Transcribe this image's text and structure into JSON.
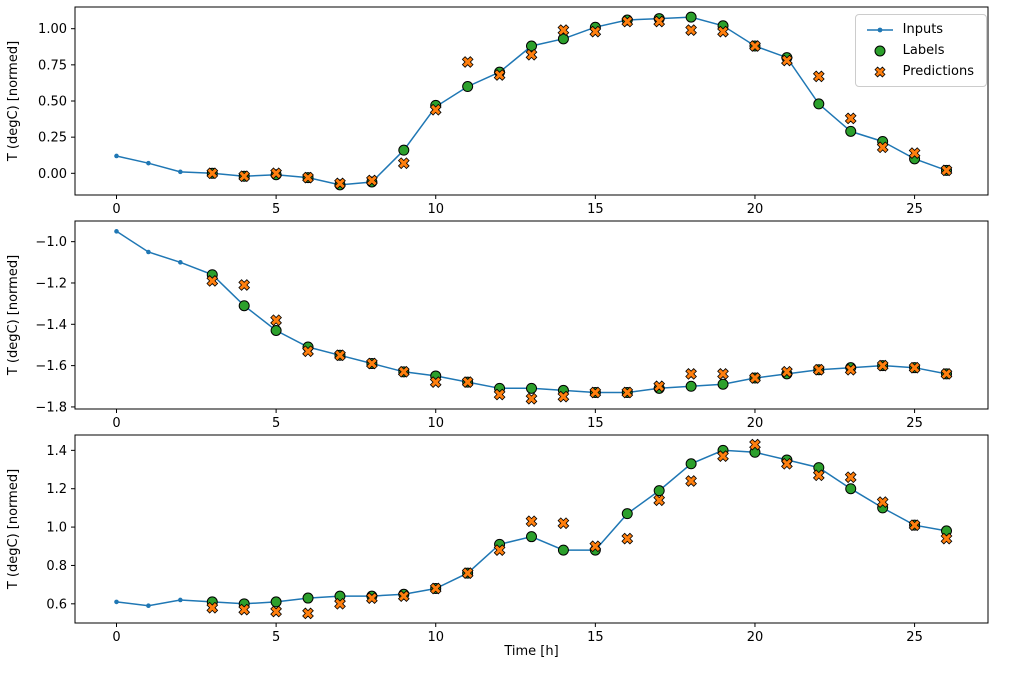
{
  "figure": {
    "xlabel": "Time [h]",
    "ylabel": "T (degC) [normed]",
    "legend": [
      {
        "label": "Inputs",
        "marker": "dot-line",
        "color": "#1f77b4"
      },
      {
        "label": "Labels",
        "marker": "circle",
        "color": "#2ca02c"
      },
      {
        "label": "Predictions",
        "marker": "x",
        "color": "#ff7f0e"
      }
    ]
  },
  "chart_data": [
    {
      "type": "line",
      "ylabel": "T (degC) [normed]",
      "xlim": [
        -1.3,
        27.3
      ],
      "ylim": [
        -0.15,
        1.15
      ],
      "xticks": [
        0,
        5,
        10,
        15,
        20,
        25
      ],
      "xticklabels": [
        "0",
        "5",
        "10",
        "15",
        "20",
        "25"
      ],
      "yticks": [
        0.0,
        0.25,
        0.5,
        0.75,
        1.0
      ],
      "yticklabels": [
        "0.00",
        "0.25",
        "0.50",
        "0.75",
        "1.00"
      ],
      "series": [
        {
          "name": "Inputs",
          "marker": "dot-line",
          "color": "#1f77b4",
          "x": [
            0,
            1,
            2,
            3,
            4,
            5,
            6,
            7,
            8,
            9,
            10,
            11,
            12,
            13,
            14,
            15,
            16,
            17,
            18,
            19,
            20,
            21,
            22,
            23,
            24,
            25,
            26
          ],
          "y": [
            0.12,
            0.07,
            0.01,
            0.0,
            -0.02,
            -0.01,
            -0.03,
            -0.08,
            -0.06,
            0.16,
            0.46,
            0.6,
            0.7,
            0.88,
            0.93,
            1.01,
            1.06,
            1.07,
            1.08,
            1.02,
            0.88,
            0.8,
            0.48,
            0.29,
            0.22,
            0.1,
            0.02
          ]
        },
        {
          "name": "Labels",
          "marker": "circle",
          "color": "#2ca02c",
          "x": [
            3,
            4,
            5,
            6,
            7,
            8,
            9,
            10,
            11,
            12,
            13,
            14,
            15,
            16,
            17,
            18,
            19,
            20,
            21,
            22,
            23,
            24,
            25,
            26
          ],
          "y": [
            0.0,
            -0.02,
            -0.01,
            -0.03,
            -0.08,
            -0.06,
            0.16,
            0.47,
            0.6,
            0.7,
            0.88,
            0.93,
            1.01,
            1.06,
            1.07,
            1.08,
            1.02,
            0.88,
            0.8,
            0.48,
            0.29,
            0.22,
            0.1,
            0.02
          ]
        },
        {
          "name": "Predictions",
          "marker": "x",
          "color": "#ff7f0e",
          "x": [
            3,
            4,
            5,
            6,
            7,
            8,
            9,
            10,
            11,
            12,
            13,
            14,
            15,
            16,
            17,
            18,
            19,
            20,
            21,
            22,
            23,
            24,
            25,
            26
          ],
          "y": [
            0.0,
            -0.02,
            0.0,
            -0.03,
            -0.07,
            -0.05,
            0.07,
            0.44,
            0.77,
            0.68,
            0.82,
            0.99,
            0.98,
            1.05,
            1.05,
            0.99,
            0.98,
            0.88,
            0.78,
            0.67,
            0.38,
            0.18,
            0.14,
            0.02
          ]
        }
      ]
    },
    {
      "type": "line",
      "ylabel": "T (degC) [normed]",
      "xlim": [
        -1.3,
        27.3
      ],
      "ylim": [
        -1.81,
        -0.9
      ],
      "xticks": [
        0,
        5,
        10,
        15,
        20,
        25
      ],
      "xticklabels": [
        "0",
        "5",
        "10",
        "15",
        "20",
        "25"
      ],
      "yticks": [
        -1.8,
        -1.6,
        -1.4,
        -1.2,
        -1.0
      ],
      "yticklabels": [
        "−1.8",
        "−1.6",
        "−1.4",
        "−1.2",
        "−1.0"
      ],
      "series": [
        {
          "name": "Inputs",
          "marker": "dot-line",
          "color": "#1f77b4",
          "x": [
            0,
            1,
            2,
            3,
            4,
            5,
            6,
            7,
            8,
            9,
            10,
            11,
            12,
            13,
            14,
            15,
            16,
            17,
            18,
            19,
            20,
            21,
            22,
            23,
            24,
            25,
            26
          ],
          "y": [
            -0.95,
            -1.05,
            -1.1,
            -1.16,
            -1.31,
            -1.43,
            -1.51,
            -1.55,
            -1.59,
            -1.63,
            -1.65,
            -1.68,
            -1.71,
            -1.71,
            -1.72,
            -1.73,
            -1.73,
            -1.71,
            -1.7,
            -1.69,
            -1.66,
            -1.64,
            -1.62,
            -1.61,
            -1.6,
            -1.61,
            -1.64
          ]
        },
        {
          "name": "Labels",
          "marker": "circle",
          "color": "#2ca02c",
          "x": [
            3,
            4,
            5,
            6,
            7,
            8,
            9,
            10,
            11,
            12,
            13,
            14,
            15,
            16,
            17,
            18,
            19,
            20,
            21,
            22,
            23,
            24,
            25,
            26
          ],
          "y": [
            -1.16,
            -1.31,
            -1.43,
            -1.51,
            -1.55,
            -1.59,
            -1.63,
            -1.65,
            -1.68,
            -1.71,
            -1.71,
            -1.72,
            -1.73,
            -1.73,
            -1.71,
            -1.7,
            -1.69,
            -1.66,
            -1.64,
            -1.62,
            -1.61,
            -1.6,
            -1.61,
            -1.64
          ]
        },
        {
          "name": "Predictions",
          "marker": "x",
          "color": "#ff7f0e",
          "x": [
            3,
            4,
            5,
            6,
            7,
            8,
            9,
            10,
            11,
            12,
            13,
            14,
            15,
            16,
            17,
            18,
            19,
            20,
            21,
            22,
            23,
            24,
            25,
            26
          ],
          "y": [
            -1.19,
            -1.21,
            -1.38,
            -1.53,
            -1.55,
            -1.59,
            -1.63,
            -1.68,
            -1.68,
            -1.74,
            -1.76,
            -1.75,
            -1.73,
            -1.73,
            -1.7,
            -1.64,
            -1.64,
            -1.66,
            -1.63,
            -1.62,
            -1.62,
            -1.6,
            -1.61,
            -1.64
          ]
        }
      ]
    },
    {
      "type": "line",
      "ylabel": "T (degC) [normed]",
      "xlim": [
        -1.3,
        27.3
      ],
      "ylim": [
        0.5,
        1.48
      ],
      "xticks": [
        0,
        5,
        10,
        15,
        20,
        25
      ],
      "xticklabels": [
        "0",
        "5",
        "10",
        "15",
        "20",
        "25"
      ],
      "yticks": [
        0.6,
        0.8,
        1.0,
        1.2,
        1.4
      ],
      "yticklabels": [
        "0.6",
        "0.8",
        "1.0",
        "1.2",
        "1.4"
      ],
      "series": [
        {
          "name": "Inputs",
          "marker": "dot-line",
          "color": "#1f77b4",
          "x": [
            0,
            1,
            2,
            3,
            4,
            5,
            6,
            7,
            8,
            9,
            10,
            11,
            12,
            13,
            14,
            15,
            16,
            17,
            18,
            19,
            20,
            21,
            22,
            23,
            24,
            25,
            26
          ],
          "y": [
            0.61,
            0.59,
            0.62,
            0.61,
            0.6,
            0.61,
            0.63,
            0.64,
            0.64,
            0.65,
            0.68,
            0.76,
            0.91,
            0.95,
            0.88,
            0.88,
            1.07,
            1.19,
            1.33,
            1.4,
            1.39,
            1.35,
            1.31,
            1.2,
            1.1,
            1.01,
            0.98
          ]
        },
        {
          "name": "Labels",
          "marker": "circle",
          "color": "#2ca02c",
          "x": [
            3,
            4,
            5,
            6,
            7,
            8,
            9,
            10,
            11,
            12,
            13,
            14,
            15,
            16,
            17,
            18,
            19,
            20,
            21,
            22,
            23,
            24,
            25,
            26
          ],
          "y": [
            0.61,
            0.6,
            0.61,
            0.63,
            0.64,
            0.64,
            0.65,
            0.68,
            0.76,
            0.91,
            0.95,
            0.88,
            0.88,
            1.07,
            1.19,
            1.33,
            1.4,
            1.39,
            1.35,
            1.31,
            1.2,
            1.1,
            1.01,
            0.98
          ]
        },
        {
          "name": "Predictions",
          "marker": "x",
          "color": "#ff7f0e",
          "x": [
            3,
            4,
            5,
            6,
            7,
            8,
            9,
            10,
            11,
            12,
            13,
            14,
            15,
            16,
            17,
            18,
            19,
            20,
            21,
            22,
            23,
            24,
            25,
            26
          ],
          "y": [
            0.58,
            0.57,
            0.56,
            0.55,
            0.6,
            0.63,
            0.64,
            0.68,
            0.76,
            0.88,
            1.03,
            1.02,
            0.9,
            0.94,
            1.14,
            1.24,
            1.37,
            1.43,
            1.33,
            1.27,
            1.26,
            1.13,
            1.01,
            0.94
          ]
        }
      ]
    }
  ]
}
